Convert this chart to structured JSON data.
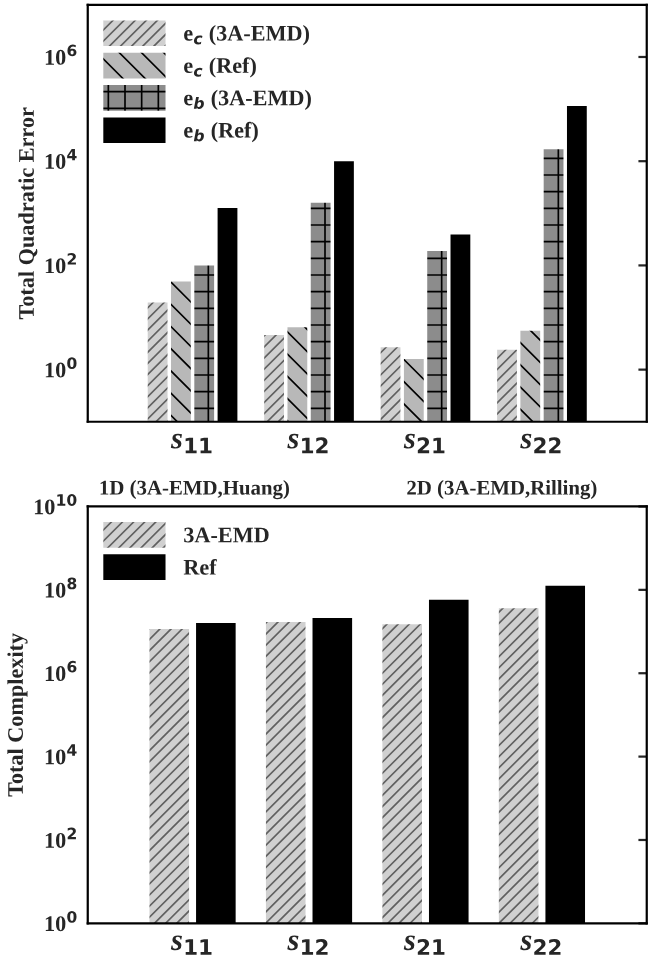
{
  "chart_data": [
    {
      "type": "bar",
      "ylabel": "Total Quadratic Error",
      "categories": [
        "s$_{11}$",
        "s$_{12}$",
        "s$_{21}$",
        "s$_{22}$"
      ],
      "log": true,
      "ylim": [
        0.1,
        10000000
      ],
      "yticks": [
        {
          "value": 1,
          "label": "10$^{0}$"
        },
        {
          "value": 100,
          "label": "10$^{2}$"
        },
        {
          "value": 10000,
          "label": "10$^{4}$"
        },
        {
          "value": 1000000,
          "label": "10$^{6}$"
        }
      ],
      "legend": "top left",
      "grid": false,
      "series": [
        {
          "name": "e$_{c}$ (3A-EMD)",
          "color": "#d0d0d0",
          "values": [
            19.5,
            4.6,
            2.7,
            2.4
          ]
        },
        {
          "name": "e$_{c}$ (Ref)",
          "color": "#b8b8b8",
          "values": [
            49,
            6.5,
            1.6,
            5.6
          ]
        },
        {
          "name": "e$_{b}$ (3A-EMD)",
          "color": "#8c8c8c",
          "values": [
            100,
            1600,
            190,
            17000
          ]
        },
        {
          "name": "e$_{b}$ (Ref)",
          "color": "#000000",
          "values": [
            1260,
            10000,
            390,
            115000
          ]
        }
      ],
      "annotations": [
        "1D (3A-EMD,Huang)",
        "2D (3A-EMD,Rilling)"
      ]
    },
    {
      "type": "bar",
      "ylabel": "Total Complexity",
      "categories": [
        "s$_{11}$",
        "s$_{12}$",
        "s$_{21}$",
        "s$_{22}$"
      ],
      "log": true,
      "ylim": [
        1,
        10000000000
      ],
      "yticks": [
        {
          "value": 1,
          "label": "10$^{0}$"
        },
        {
          "value": 100,
          "label": "10$^{2}$"
        },
        {
          "value": 10000,
          "label": "10$^{4}$"
        },
        {
          "value": 1000000,
          "label": "10$^{6}$"
        },
        {
          "value": 100000000,
          "label": "10$^{8}$"
        },
        {
          "value": 10000000000,
          "label": "10$^{10}$"
        }
      ],
      "legend": "top left",
      "grid": false,
      "series": [
        {
          "name": "3A-EMD",
          "color": "#d0d0d0",
          "values": [
            11500000,
            17000000,
            15000000,
            36000000
          ]
        },
        {
          "name": "Ref",
          "color": "#000000",
          "values": [
            16000000,
            21000000,
            58000000,
            125000000
          ]
        }
      ]
    }
  ]
}
